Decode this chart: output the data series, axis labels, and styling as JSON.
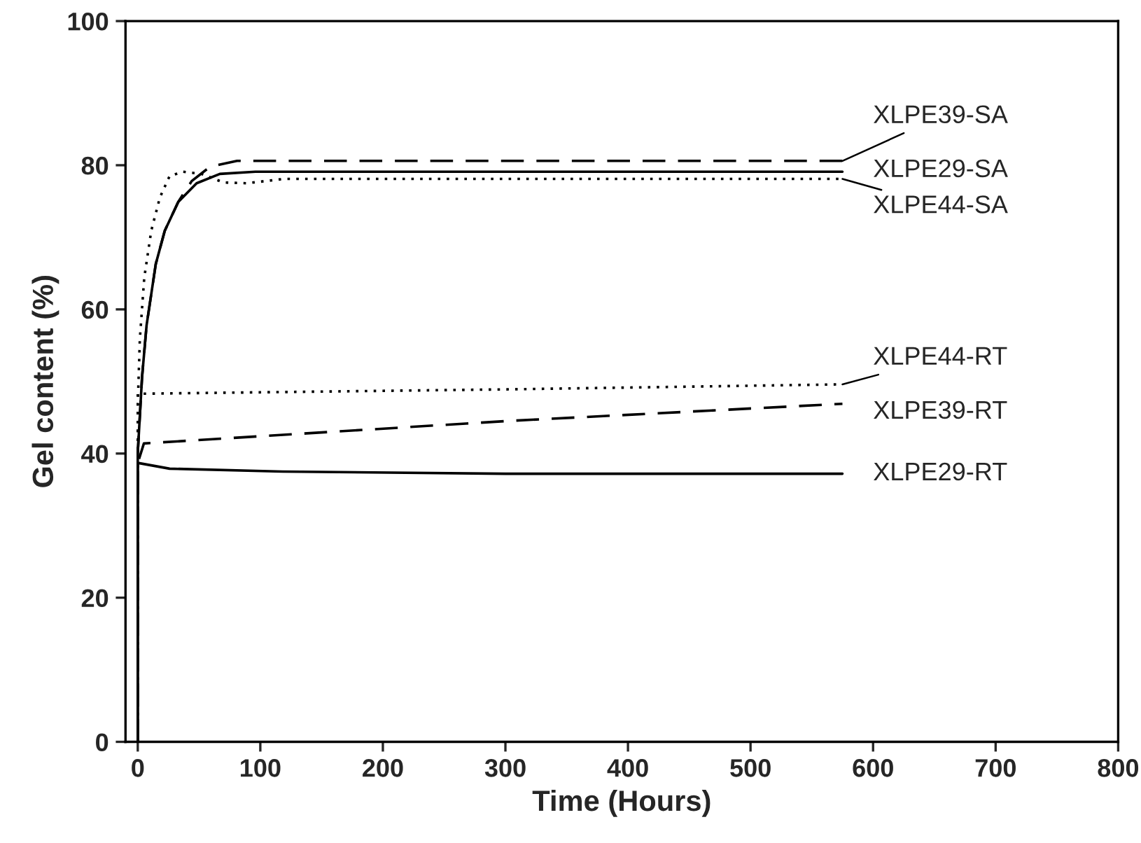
{
  "chart_data": {
    "type": "line",
    "xlabel": "Time (Hours)",
    "ylabel": "Gel content (%)",
    "xlim": [
      -10,
      800
    ],
    "xticks": [
      0,
      100,
      200,
      300,
      400,
      500,
      600,
      700,
      800
    ],
    "ylim": [
      0,
      100
    ],
    "yticks": [
      0,
      20,
      40,
      60,
      80,
      100
    ],
    "grid": false,
    "legend": false,
    "marker": "none",
    "series": [
      {
        "name": "XLPE39-SA",
        "color": "#000000",
        "line_style": "dashed",
        "x": [
          0,
          0,
          3.5,
          7.2,
          14.7,
          22,
          33,
          44,
          59,
          81,
          300,
          575
        ],
        "values": [
          0,
          40.1,
          50.6,
          57.8,
          66.3,
          70.9,
          74.9,
          77.8,
          79.8,
          80.6,
          80.6,
          80.6
        ]
      },
      {
        "name": "XLPE29-SA",
        "color": "#000000",
        "line_style": "solid",
        "x": [
          0,
          0,
          3.5,
          7.2,
          14.7,
          22,
          33,
          48,
          67,
          96,
          300,
          575
        ],
        "values": [
          0,
          40.1,
          50.6,
          57.8,
          66.3,
          70.9,
          74.9,
          77.5,
          78.8,
          79.1,
          79.1,
          79.1
        ]
      },
      {
        "name": "XLPE44-SA",
        "color": "#000000",
        "line_style": "dotted",
        "x": [
          0,
          0,
          1.7,
          5.3,
          11,
          18,
          26,
          37,
          52,
          70,
          89,
          119,
          300,
          575
        ],
        "values": [
          0,
          46.7,
          55.9,
          64.4,
          70.9,
          75.5,
          78.5,
          79.1,
          78.8,
          77.6,
          77.5,
          78.1,
          78.1,
          78.1
        ]
      },
      {
        "name": "XLPE44-RT",
        "color": "#000000",
        "line_style": "dotted",
        "x": [
          0,
          0,
          3,
          300,
          575
        ],
        "values": [
          0,
          48.3,
          48.3,
          48.9,
          49.6
        ]
      },
      {
        "name": "XLPE39-RT",
        "color": "#000000",
        "line_style": "dashed",
        "x": [
          0,
          0,
          5,
          300,
          575
        ],
        "values": [
          0,
          38.7,
          41.4,
          44.5,
          46.9
        ]
      },
      {
        "name": "XLPE29-RT",
        "color": "#000000",
        "line_style": "solid",
        "x": [
          0,
          0,
          26,
          118,
          300,
          575
        ],
        "values": [
          0,
          38.7,
          37.9,
          37.5,
          37.2,
          37.2
        ]
      }
    ]
  }
}
